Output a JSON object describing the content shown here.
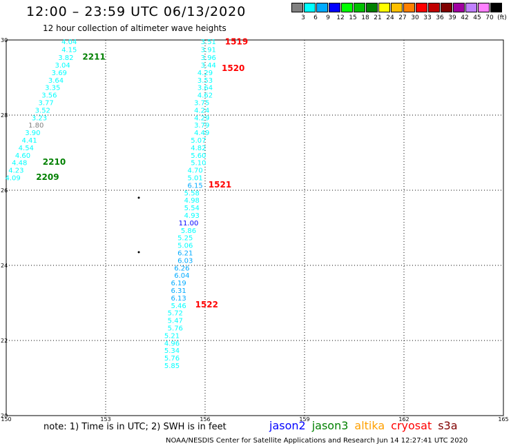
{
  "title": "12:00 – 23:59 UTC 06/13/2020",
  "subtitle": "12 hour collection of altimeter wave heights",
  "legend": {
    "colors": [
      "#808080",
      "#00ffff",
      "#00aaff",
      "#0000ff",
      "#00ff00",
      "#00c000",
      "#008000",
      "#ffff00",
      "#ffc000",
      "#ff8000",
      "#ff0000",
      "#c00000",
      "#800000",
      "#a000a0",
      "#c080ff",
      "#ff80ff",
      "#000000"
    ],
    "labels": [
      "3",
      "6",
      "9",
      "12",
      "15",
      "18",
      "21",
      "24",
      "27",
      "30",
      "33",
      "36",
      "39",
      "42",
      "45",
      "70",
      "(ft)"
    ]
  },
  "chart_data": {
    "type": "scatter",
    "xlim": [
      150,
      165
    ],
    "ylim": [
      20,
      30
    ],
    "xticks": [
      "150",
      "153",
      "156",
      "159",
      "162",
      "165"
    ],
    "yticks": [
      "30",
      "28",
      "26",
      "24",
      "22",
      "20"
    ],
    "grid": true,
    "points": [
      {
        "x": 151.9,
        "y": 29.95,
        "label": "4.04",
        "color": "#00ffff"
      },
      {
        "x": 151.9,
        "y": 29.74,
        "label": "4.15",
        "color": "#00ffff"
      },
      {
        "x": 151.8,
        "y": 29.53,
        "label": "3.82",
        "color": "#00ffff"
      },
      {
        "x": 151.7,
        "y": 29.33,
        "label": "3.04",
        "color": "#00ffff"
      },
      {
        "x": 151.6,
        "y": 29.13,
        "label": "3.69",
        "color": "#00ffff"
      },
      {
        "x": 151.5,
        "y": 28.93,
        "label": "3.64",
        "color": "#00ffff"
      },
      {
        "x": 151.4,
        "y": 28.73,
        "label": "3.35",
        "color": "#00ffff"
      },
      {
        "x": 151.3,
        "y": 28.53,
        "label": "3.56",
        "color": "#00ffff"
      },
      {
        "x": 151.2,
        "y": 28.33,
        "label": "3.77",
        "color": "#00ffff"
      },
      {
        "x": 151.1,
        "y": 28.13,
        "label": "3.52",
        "color": "#00ffff"
      },
      {
        "x": 151.0,
        "y": 27.93,
        "label": "3.23",
        "color": "#00ffff"
      },
      {
        "x": 150.9,
        "y": 27.73,
        "label": "1.80",
        "color": "#808080"
      },
      {
        "x": 150.8,
        "y": 27.53,
        "label": "3.90",
        "color": "#00ffff"
      },
      {
        "x": 150.7,
        "y": 27.33,
        "label": "4.41",
        "color": "#00ffff"
      },
      {
        "x": 150.6,
        "y": 27.13,
        "label": "4.54",
        "color": "#00ffff"
      },
      {
        "x": 150.5,
        "y": 26.93,
        "label": "4.60",
        "color": "#00ffff"
      },
      {
        "x": 150.4,
        "y": 26.73,
        "label": "4.48",
        "color": "#00ffff"
      },
      {
        "x": 150.3,
        "y": 26.53,
        "label": "4.23",
        "color": "#00ffff"
      },
      {
        "x": 150.2,
        "y": 26.33,
        "label": "4.09",
        "color": "#00ffff"
      },
      {
        "x": 156.1,
        "y": 29.95,
        "label": "3.51",
        "color": "#00ffff"
      },
      {
        "x": 156.1,
        "y": 29.74,
        "label": "3.91",
        "color": "#00ffff"
      },
      {
        "x": 156.1,
        "y": 29.53,
        "label": "3.96",
        "color": "#00ffff"
      },
      {
        "x": 156.1,
        "y": 29.33,
        "label": "3.44",
        "color": "#00ffff"
      },
      {
        "x": 156.0,
        "y": 29.13,
        "label": "4.29",
        "color": "#00ffff"
      },
      {
        "x": 156.0,
        "y": 28.93,
        "label": "3.53",
        "color": "#00ffff"
      },
      {
        "x": 156.0,
        "y": 28.73,
        "label": "3.64",
        "color": "#00ffff"
      },
      {
        "x": 156.0,
        "y": 28.53,
        "label": "4.62",
        "color": "#00ffff"
      },
      {
        "x": 155.9,
        "y": 28.33,
        "label": "3.75",
        "color": "#00ffff"
      },
      {
        "x": 155.9,
        "y": 28.13,
        "label": "4.24",
        "color": "#00ffff"
      },
      {
        "x": 155.9,
        "y": 27.93,
        "label": "4.29",
        "color": "#00ffff"
      },
      {
        "x": 155.9,
        "y": 27.73,
        "label": "3.79",
        "color": "#00ffff"
      },
      {
        "x": 155.9,
        "y": 27.53,
        "label": "4.49",
        "color": "#00ffff"
      },
      {
        "x": 155.8,
        "y": 27.33,
        "label": "5.07",
        "color": "#00ffff"
      },
      {
        "x": 155.8,
        "y": 27.13,
        "label": "4.82",
        "color": "#00ffff"
      },
      {
        "x": 155.8,
        "y": 26.93,
        "label": "5.60",
        "color": "#00ffff"
      },
      {
        "x": 155.8,
        "y": 26.73,
        "label": "5.10",
        "color": "#00ffff"
      },
      {
        "x": 155.7,
        "y": 26.53,
        "label": "4.70",
        "color": "#00ffff"
      },
      {
        "x": 155.7,
        "y": 26.33,
        "label": "5.01",
        "color": "#00ffff"
      },
      {
        "x": 155.7,
        "y": 26.13,
        "label": "6.15",
        "color": "#00aaff"
      },
      {
        "x": 155.6,
        "y": 25.93,
        "label": "5.58",
        "color": "#00ffff"
      },
      {
        "x": 155.6,
        "y": 25.73,
        "label": "4.98",
        "color": "#00ffff"
      },
      {
        "x": 155.6,
        "y": 25.53,
        "label": "5.54",
        "color": "#00ffff"
      },
      {
        "x": 155.6,
        "y": 25.33,
        "label": "4.93",
        "color": "#00ffff"
      },
      {
        "x": 155.5,
        "y": 25.13,
        "label": "11.00",
        "color": "#0000ff"
      },
      {
        "x": 155.5,
        "y": 24.93,
        "label": "5.86",
        "color": "#00ffff"
      },
      {
        "x": 155.4,
        "y": 24.73,
        "label": "5.25",
        "color": "#00ffff"
      },
      {
        "x": 155.4,
        "y": 24.53,
        "label": "5.06",
        "color": "#00ffff"
      },
      {
        "x": 155.4,
        "y": 24.33,
        "label": "6.21",
        "color": "#00aaff"
      },
      {
        "x": 155.4,
        "y": 24.13,
        "label": "6.03",
        "color": "#00aaff"
      },
      {
        "x": 155.3,
        "y": 23.93,
        "label": "6.26",
        "color": "#00aaff"
      },
      {
        "x": 155.3,
        "y": 23.73,
        "label": "6.04",
        "color": "#00aaff"
      },
      {
        "x": 155.2,
        "y": 23.53,
        "label": "6.19",
        "color": "#00aaff"
      },
      {
        "x": 155.2,
        "y": 23.33,
        "label": "6.31",
        "color": "#00aaff"
      },
      {
        "x": 155.2,
        "y": 23.13,
        "label": "6.13",
        "color": "#00aaff"
      },
      {
        "x": 155.2,
        "y": 22.93,
        "label": "5.46",
        "color": "#00ffff"
      },
      {
        "x": 155.1,
        "y": 22.73,
        "label": "5.72",
        "color": "#00ffff"
      },
      {
        "x": 155.1,
        "y": 22.53,
        "label": "5.47",
        "color": "#00ffff"
      },
      {
        "x": 155.1,
        "y": 22.33,
        "label": "5.76",
        "color": "#00ffff"
      },
      {
        "x": 155.0,
        "y": 22.13,
        "label": "5.21",
        "color": "#00ffff"
      },
      {
        "x": 155.0,
        "y": 21.93,
        "label": "4.96",
        "color": "#00ffff"
      },
      {
        "x": 155.0,
        "y": 21.73,
        "label": "5.34",
        "color": "#00ffff"
      },
      {
        "x": 155.0,
        "y": 21.53,
        "label": "5.76",
        "color": "#00ffff"
      },
      {
        "x": 155.0,
        "y": 21.33,
        "label": "5.85",
        "color": "#00ffff"
      }
    ],
    "times": [
      {
        "x": 152.3,
        "y": 29.55,
        "label": "2211",
        "color": "#008000"
      },
      {
        "x": 151.1,
        "y": 26.75,
        "label": "2210",
        "color": "#008000"
      },
      {
        "x": 150.9,
        "y": 26.35,
        "label": "2209",
        "color": "#008000"
      },
      {
        "x": 156.6,
        "y": 29.95,
        "label": "1519",
        "color": "#ff0000"
      },
      {
        "x": 156.5,
        "y": 29.25,
        "label": "1520",
        "color": "#ff0000"
      },
      {
        "x": 156.1,
        "y": 26.15,
        "label": "1521",
        "color": "#ff0000"
      },
      {
        "x": 155.7,
        "y": 22.95,
        "label": "1522",
        "color": "#ff0000"
      }
    ],
    "dots": [
      {
        "x": 154.0,
        "y": 25.8
      },
      {
        "x": 154.0,
        "y": 24.35
      }
    ]
  },
  "note": "note:  1) Time is in UTC;  2) SWH is in feet",
  "satellites": [
    {
      "name": "jason2",
      "color": "#0000ff"
    },
    {
      "name": "jason3",
      "color": "#008000"
    },
    {
      "name": "altika",
      "color": "#ffa000"
    },
    {
      "name": "cryosat",
      "color": "#ff0000"
    },
    {
      "name": "s3a",
      "color": "#800000"
    }
  ],
  "credit": "NOAA/NESDIS Center for Satellite Applications and Research    Jun 14 12:27:41 UTC 2020"
}
